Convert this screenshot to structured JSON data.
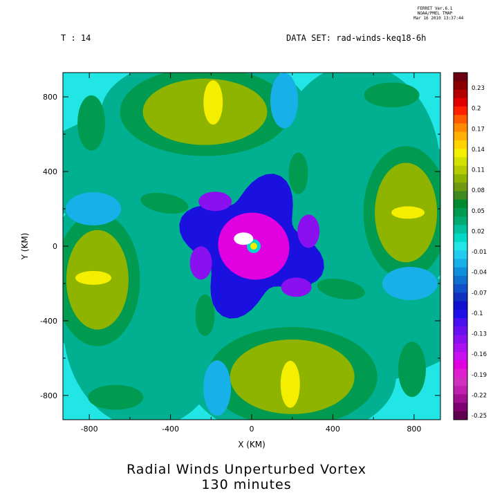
{
  "header": {
    "ferret_line1": "FERRET  Ver.6.1",
    "ferret_line2": "NOAA/PMEL TMAP",
    "ferret_line3": "Mar 16 2010 13:37:44",
    "time_label": "T : 14",
    "dataset_label": "DATA SET: rad-winds-keq18-6h"
  },
  "title": {
    "line1": "Radial Winds Unperturbed Vortex",
    "line2": "130 minutes"
  },
  "colors": {
    "cyan": "#22e6e6",
    "teal": "#00b090",
    "green": "#009a50",
    "olive": "#8fb400",
    "yellow": "#f4ee00",
    "blue": "#1a10e0",
    "purple": "#8a10f0",
    "magenta": "#e000e0"
  },
  "chart_data": {
    "type": "heatmap",
    "subtype": "filled-contour",
    "xlabel": "X (KM)",
    "ylabel": "Y (KM)",
    "xlim": [
      -930,
      930
    ],
    "ylim": [
      -930,
      930
    ],
    "x_ticks": [
      -800,
      -400,
      0,
      400,
      800
    ],
    "y_ticks": [
      -800,
      -400,
      0,
      400,
      800
    ],
    "x_tick_labels": [
      "-800",
      "-400",
      "0",
      "400",
      "800"
    ],
    "y_tick_labels": [
      "-800",
      "-400",
      "0",
      "400",
      "800"
    ],
    "colorbar": {
      "levels": [
        0.23,
        0.2,
        0.17,
        0.14,
        0.11,
        0.08,
        0.05,
        0.02,
        -0.01,
        -0.04,
        -0.07,
        -0.1,
        -0.13,
        -0.16,
        -0.19,
        -0.22,
        -0.25
      ],
      "labels": [
        "0.23",
        "0.2",
        "0.17",
        "0.14",
        "0.11",
        "0.08",
        "0.05",
        "0.02",
        "-0.01",
        "-0.04",
        "-0.07",
        "-0.1",
        "-0.13",
        "-0.16",
        "-0.19",
        "-0.22",
        "-0.25"
      ],
      "colors": [
        "#6a0010",
        "#8a0000",
        "#b40000",
        "#e00000",
        "#ff2000",
        "#ff5a00",
        "#ff8a00",
        "#ffb000",
        "#ffd200",
        "#f4ee00",
        "#d4e000",
        "#b6cc00",
        "#8fb400",
        "#6f9a10",
        "#3e8a20",
        "#008a30",
        "#009a50",
        "#00aa70",
        "#00c0a0",
        "#00d8c8",
        "#22e6e6",
        "#22ccee",
        "#18b0e8",
        "#1090dc",
        "#1070d0",
        "#1050c8",
        "#1030c0",
        "#1010d0",
        "#2010e8",
        "#4a10f0",
        "#6a10f0",
        "#8a10f0",
        "#aa10f0",
        "#c810f0",
        "#e000e0",
        "#e020d0",
        "#d030c0",
        "#c020b0",
        "#a01090",
        "#800070",
        "#600050"
      ]
    },
    "features": [
      {
        "type": "max",
        "x": -180,
        "y": 780,
        "value": 0.12
      },
      {
        "type": "max",
        "x": 190,
        "y": -750,
        "value": 0.12
      },
      {
        "type": "max",
        "x": -780,
        "y": -170,
        "value": 0.11
      },
      {
        "type": "max",
        "x": 780,
        "y": 180,
        "value": 0.09
      },
      {
        "type": "min",
        "x": 0,
        "y": 0,
        "value": -0.25
      },
      {
        "type": "min",
        "x": 300,
        "y": 20,
        "value": -0.16
      },
      {
        "type": "min",
        "x": -250,
        "y": -100,
        "value": -0.14
      }
    ]
  }
}
